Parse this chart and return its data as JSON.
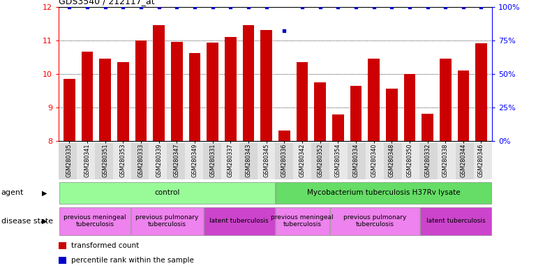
{
  "title": "GDS3540 / 212117_at",
  "samples": [
    "GSM280335",
    "GSM280341",
    "GSM280351",
    "GSM280353",
    "GSM280333",
    "GSM280339",
    "GSM280347",
    "GSM280349",
    "GSM280331",
    "GSM280337",
    "GSM280343",
    "GSM280345",
    "GSM280336",
    "GSM280342",
    "GSM280352",
    "GSM280354",
    "GSM280334",
    "GSM280340",
    "GSM280348",
    "GSM280350",
    "GSM280332",
    "GSM280338",
    "GSM280344",
    "GSM280346"
  ],
  "bar_values": [
    9.85,
    10.65,
    10.45,
    10.35,
    11.0,
    11.45,
    10.95,
    10.62,
    10.93,
    11.1,
    11.45,
    11.3,
    8.3,
    10.35,
    9.75,
    8.78,
    9.63,
    10.45,
    9.55,
    10.0,
    8.8,
    10.45,
    10.1,
    10.9
  ],
  "percentile_values": [
    100,
    100,
    100,
    100,
    100,
    100,
    100,
    100,
    100,
    100,
    100,
    100,
    82,
    100,
    100,
    100,
    100,
    100,
    100,
    100,
    100,
    100,
    100,
    100
  ],
  "bar_color": "#cc0000",
  "dot_color": "#0000cc",
  "ylim_min": 8,
  "ylim_max": 12,
  "yticks": [
    8,
    9,
    10,
    11,
    12
  ],
  "y2lim_min": 0,
  "y2lim_max": 100,
  "y2ticks": [
    0,
    25,
    50,
    75,
    100
  ],
  "y2ticklabels": [
    "0%",
    "25%",
    "50%",
    "75%",
    "100%"
  ],
  "grid_yticks": [
    9,
    10,
    11
  ],
  "agent_label": "agent",
  "disease_label": "disease state",
  "agent_groups": [
    {
      "label": "control",
      "start": 0,
      "end": 11,
      "color": "#98fb98"
    },
    {
      "label": "Mycobacterium tuberculosis H37Rv lysate",
      "start": 12,
      "end": 23,
      "color": "#66dd66"
    }
  ],
  "disease_groups": [
    {
      "label": "previous meningeal\ntuberculosis",
      "start": 0,
      "end": 3,
      "color": "#ee82ee"
    },
    {
      "label": "previous pulmonary\ntuberculosis",
      "start": 4,
      "end": 7,
      "color": "#ee82ee"
    },
    {
      "label": "latent tuberculosis",
      "start": 8,
      "end": 11,
      "color": "#cc44cc"
    },
    {
      "label": "previous meningeal\ntuberculosis",
      "start": 12,
      "end": 14,
      "color": "#ee82ee"
    },
    {
      "label": "previous pulmonary\ntuberculosis",
      "start": 15,
      "end": 19,
      "color": "#ee82ee"
    },
    {
      "label": "latent tuberculosis",
      "start": 20,
      "end": 23,
      "color": "#cc44cc"
    }
  ],
  "legend_items": [
    {
      "color": "#cc0000",
      "label": "transformed count"
    },
    {
      "color": "#0000cc",
      "label": "percentile rank within the sample"
    }
  ]
}
